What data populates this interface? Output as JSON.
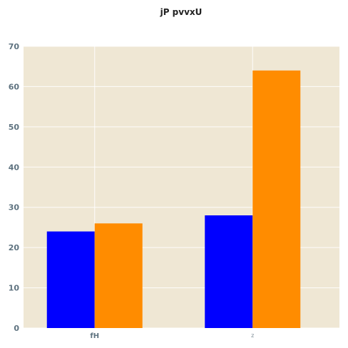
{
  "chart_data": {
    "type": "bar",
    "title": "jP pvvxU",
    "xlabel": "",
    "ylabel": "",
    "categories": [
      "fH",
      "z"
    ],
    "series": [
      {
        "values": [
          24,
          28
        ],
        "color": "#0000ff"
      },
      {
        "values": [
          26,
          64
        ],
        "color": "#ff8c00"
      }
    ],
    "ylim": [
      0,
      70
    ],
    "yticks": [
      0,
      10,
      20,
      30,
      40,
      50,
      60,
      70
    ],
    "grid": true,
    "background_color": "#efe7d4",
    "legend": "none"
  }
}
